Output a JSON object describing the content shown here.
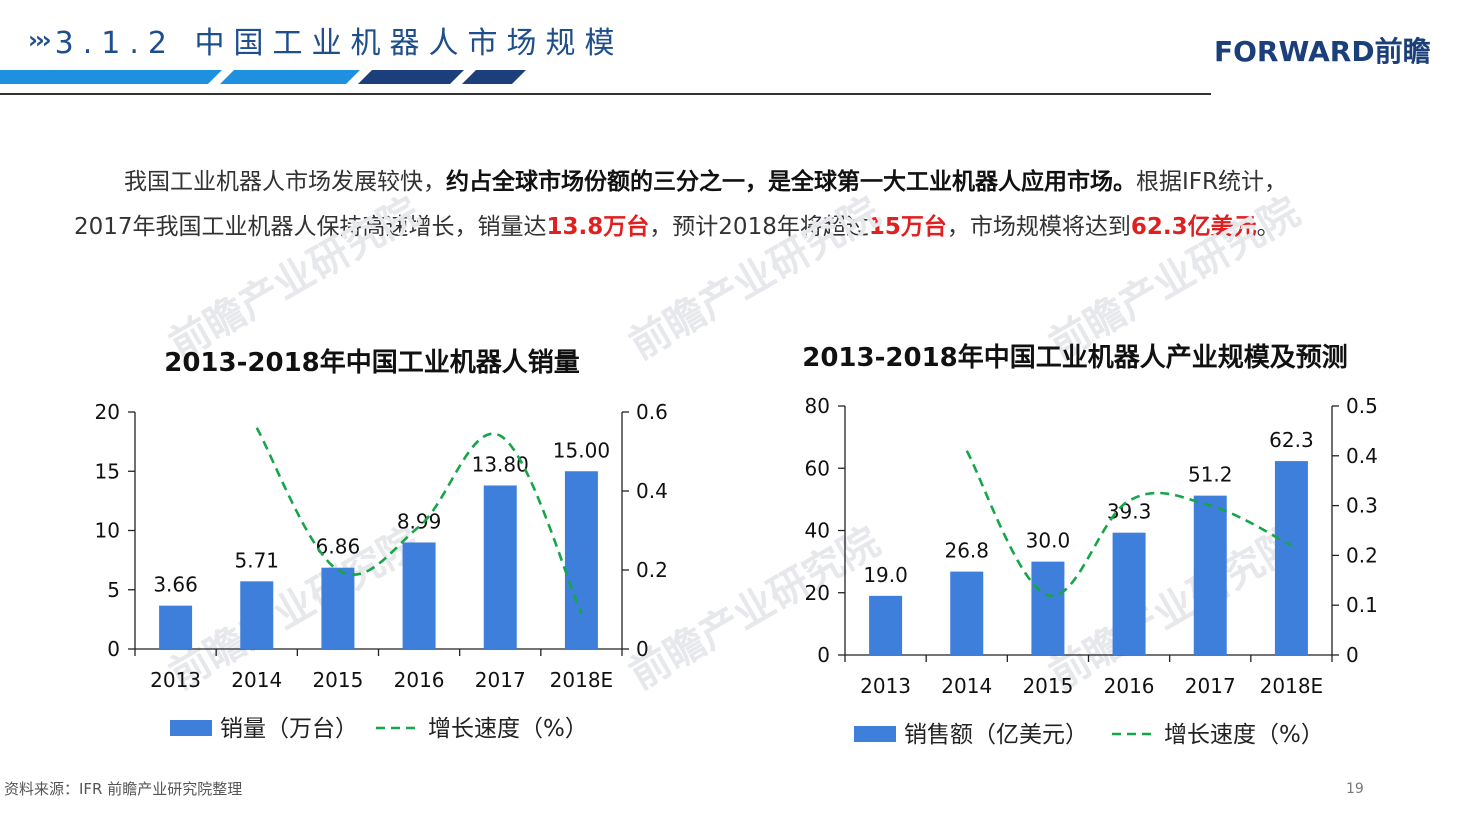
{
  "header": {
    "chevrons": "›››",
    "title": "3.1.2 中国工业机器人市场规模",
    "logo": "FORWARD前瞻"
  },
  "intro": {
    "line1_a": "我国工业机器人市场发展较快，",
    "line1_b": "约占全球市场份额的三分之一，是全球第一大工业机器人应用市场。",
    "line1_c": "根据IFR统计，",
    "line2_a": "2017年我国工业机器人保持高速增长，销量达",
    "line2_b": "13.8万台",
    "line2_c": "，预计2018年将超过",
    "line2_d": "15万台",
    "line2_e": "，市场规模将达到",
    "line2_f": "62.3亿美元",
    "line2_g": "。"
  },
  "watermark": "前瞻产业研究院",
  "footer": {
    "source": "资料来源：IFR 前瞻产业研究院整理",
    "page": "19"
  },
  "colors": {
    "bar": "#3f7fdc",
    "line": "#17a54a",
    "title": "#1f4e8c"
  },
  "chart_data": [
    {
      "type": "bar",
      "title": "2013-2018年中国工业机器人销量",
      "categories": [
        "2013",
        "2014",
        "2015",
        "2016",
        "2017",
        "2018E"
      ],
      "ylim": [
        0,
        20
      ],
      "yticks": [
        "0",
        "5",
        "10",
        "15",
        "20"
      ],
      "y2lim": [
        0,
        0.6
      ],
      "y2ticks": [
        "0",
        "0.2",
        "0.4",
        "0.6"
      ],
      "series": [
        {
          "name": "销量（万台）",
          "kind": "bar",
          "values": [
            3.66,
            5.71,
            6.86,
            8.99,
            13.8,
            15.0
          ],
          "labels": [
            "3.66",
            "5.71",
            "6.86",
            "8.99",
            "13.80",
            "15.00"
          ]
        },
        {
          "name": "增长速度（%）",
          "kind": "line",
          "axis": "right",
          "style": "dashed",
          "values": [
            null,
            0.56,
            0.2,
            0.31,
            0.54,
            0.09
          ]
        }
      ]
    },
    {
      "type": "bar",
      "title": "2013-2018年中国工业机器人产业规模及预测",
      "categories": [
        "2013",
        "2014",
        "2015",
        "2016",
        "2017",
        "2018E"
      ],
      "ylim": [
        0,
        80
      ],
      "yticks": [
        "0",
        "20",
        "40",
        "60",
        "80"
      ],
      "y2lim": [
        0,
        0.5
      ],
      "y2ticks": [
        "0",
        "0.1",
        "0.2",
        "0.3",
        "0.4",
        "0.5"
      ],
      "series": [
        {
          "name": "销售额（亿美元）",
          "kind": "bar",
          "values": [
            19.0,
            26.8,
            30.0,
            39.3,
            51.2,
            62.3
          ],
          "labels": [
            "19.0",
            "26.8",
            "30.0",
            "39.3",
            "51.2",
            "62.3"
          ]
        },
        {
          "name": "增长速度（%）",
          "kind": "line",
          "axis": "right",
          "style": "dashed",
          "values": [
            null,
            0.41,
            0.12,
            0.31,
            0.3,
            0.22
          ]
        }
      ]
    }
  ]
}
